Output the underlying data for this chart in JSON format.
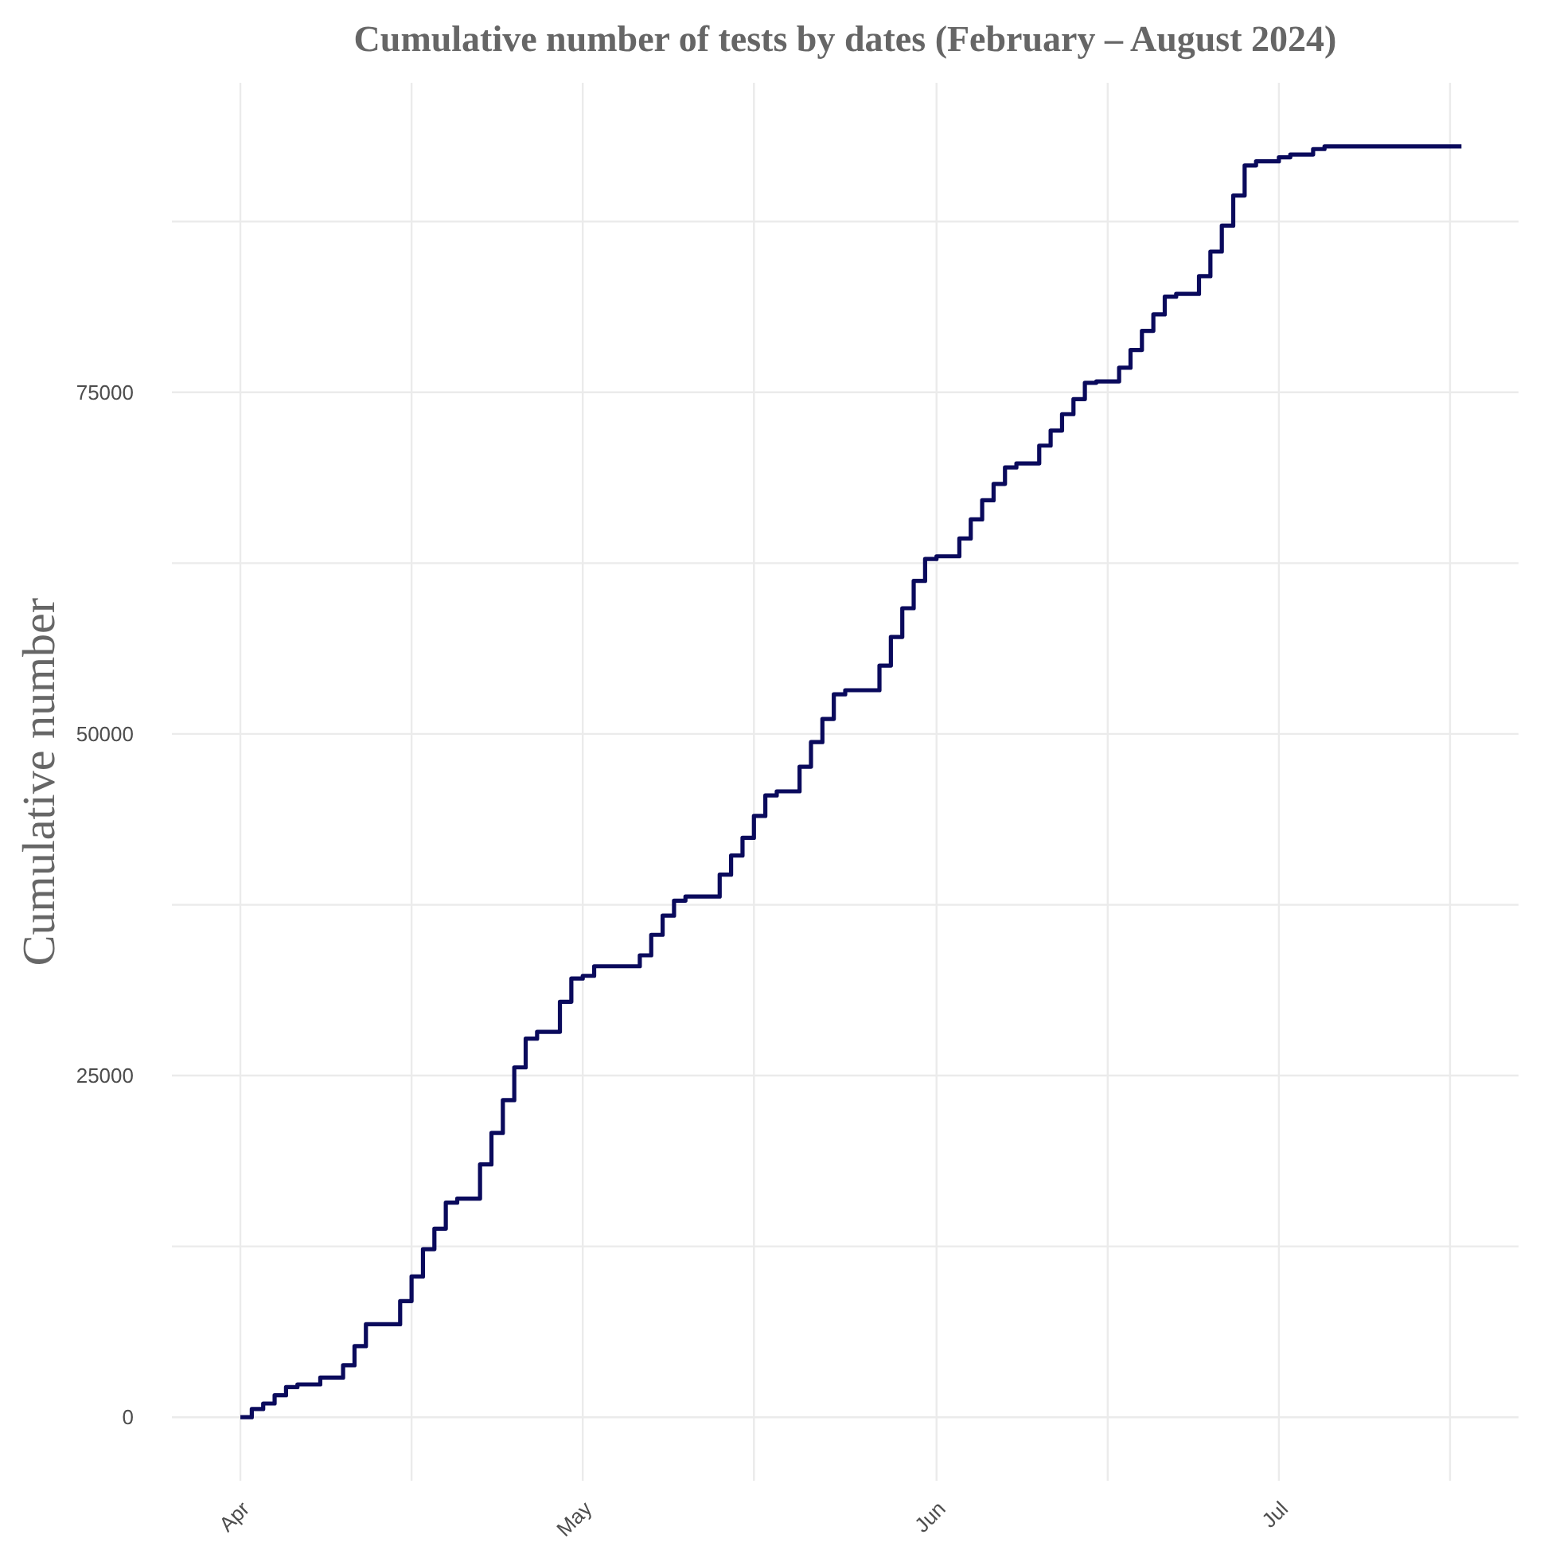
{
  "chart_data": {
    "type": "step",
    "title": "Cumulative number of tests by dates (February – August 2024)",
    "ylabel": "Cumulative number",
    "x": [
      "2024-04-01",
      "2024-04-02",
      "2024-04-03",
      "2024-04-04",
      "2024-04-05",
      "2024-04-06",
      "2024-04-08",
      "2024-04-10",
      "2024-04-11",
      "2024-04-12",
      "2024-04-15",
      "2024-04-16",
      "2024-04-17",
      "2024-04-18",
      "2024-04-19",
      "2024-04-20",
      "2024-04-22",
      "2024-04-23",
      "2024-04-24",
      "2024-04-25",
      "2024-04-26",
      "2024-04-27",
      "2024-04-29",
      "2024-04-30",
      "2024-05-01",
      "2024-05-02",
      "2024-05-06",
      "2024-05-07",
      "2024-05-08",
      "2024-05-09",
      "2024-05-10",
      "2024-05-13",
      "2024-05-14",
      "2024-05-15",
      "2024-05-16",
      "2024-05-17",
      "2024-05-18",
      "2024-05-20",
      "2024-05-21",
      "2024-05-22",
      "2024-05-23",
      "2024-05-24",
      "2024-05-27",
      "2024-05-28",
      "2024-05-29",
      "2024-05-30",
      "2024-05-31",
      "2024-06-01",
      "2024-06-03",
      "2024-06-04",
      "2024-06-05",
      "2024-06-06",
      "2024-06-07",
      "2024-06-08",
      "2024-06-10",
      "2024-06-11",
      "2024-06-12",
      "2024-06-13",
      "2024-06-14",
      "2024-06-15",
      "2024-06-17",
      "2024-06-18",
      "2024-06-19",
      "2024-06-20",
      "2024-06-21",
      "2024-06-22",
      "2024-06-24",
      "2024-06-25",
      "2024-06-26",
      "2024-06-27",
      "2024-06-28",
      "2024-06-29",
      "2024-07-01",
      "2024-07-02",
      "2024-07-04",
      "2024-07-05",
      "2024-07-17"
    ],
    "series": [
      {
        "color": "#0a0a5c",
        "values": [
          0,
          600,
          1000,
          1600,
          2200,
          2400,
          2900,
          3800,
          5200,
          6800,
          8500,
          10300,
          12300,
          13800,
          15700,
          16000,
          18500,
          20800,
          23200,
          25600,
          27700,
          28200,
          30400,
          32100,
          32300,
          33000,
          33800,
          35300,
          36700,
          37800,
          38100,
          39700,
          41100,
          42400,
          44000,
          45500,
          45800,
          47600,
          49400,
          51100,
          52900,
          53200,
          55000,
          57100,
          59200,
          61200,
          62800,
          63000,
          64300,
          65700,
          67100,
          68300,
          69500,
          69800,
          71100,
          72200,
          73400,
          74500,
          75700,
          75800,
          76800,
          78100,
          79500,
          80700,
          82000,
          82200,
          83500,
          85300,
          87200,
          89400,
          91600,
          91900,
          92200,
          92400,
          92800,
          93000,
          93000
        ]
      }
    ],
    "xlim": [
      "2024-03-26",
      "2024-07-22"
    ],
    "xticks": [
      {
        "value": "2024-04-01",
        "label": "Apr"
      },
      {
        "value": "2024-04-16",
        "label": null
      },
      {
        "value": "2024-05-01",
        "label": "May"
      },
      {
        "value": "2024-05-16",
        "label": null
      },
      {
        "value": "2024-06-01",
        "label": "Jun"
      },
      {
        "value": "2024-06-16",
        "label": null
      },
      {
        "value": "2024-07-01",
        "label": "Jul"
      },
      {
        "value": "2024-07-16",
        "label": null
      }
    ],
    "ylim": [
      -4650,
      97650
    ],
    "yticks": [
      0,
      {
        "value": 12500,
        "label": null
      },
      25000,
      {
        "value": 37500,
        "label": null
      },
      50000,
      {
        "value": 62500,
        "label": null
      },
      75000,
      {
        "value": 87500,
        "label": null
      }
    ],
    "grid": true,
    "line_style": "solid",
    "marker": "none"
  }
}
